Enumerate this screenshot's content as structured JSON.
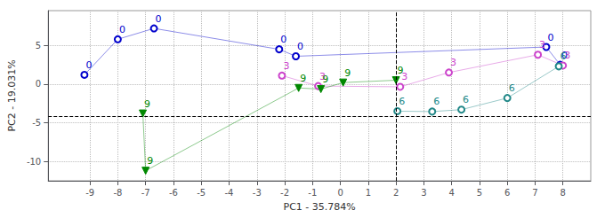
{
  "chart_data": {
    "type": "line",
    "xlabel": "PC1 - 35.784%",
    "ylabel": "PC2 - 19.031%",
    "xlim": [
      -10.5,
      9.0
    ],
    "ylim": [
      -12.5,
      9.5
    ],
    "xticks": [
      -9,
      -8,
      -7,
      -6,
      -5,
      -4,
      -3,
      -2,
      -1,
      0,
      1,
      2,
      3,
      4,
      5,
      6,
      7,
      8
    ],
    "yticks": [
      -10,
      -5,
      0,
      5
    ],
    "grid": true,
    "hline": -4.2,
    "vline": 2.0,
    "series": [
      {
        "name": "0",
        "color": "#0000cc",
        "marker": "circle",
        "x": [
          -9.2,
          -8.0,
          -6.7,
          -2.2,
          -1.6,
          7.4,
          7.9
        ],
        "values": [
          1.2,
          5.8,
          7.2,
          4.5,
          3.6,
          4.8,
          2.5
        ]
      },
      {
        "name": "3",
        "color": "#cc44cc",
        "marker": "circle",
        "x": [
          -2.1,
          -0.8,
          2.15,
          3.9,
          7.1,
          8.0
        ],
        "values": [
          1.1,
          -0.25,
          -0.35,
          1.5,
          3.8,
          2.4
        ]
      },
      {
        "name": "6",
        "color": "#228888",
        "marker": "circle",
        "x": [
          2.05,
          3.3,
          4.35,
          6.0,
          7.85
        ],
        "values": [
          -3.5,
          -3.55,
          -3.3,
          -1.8,
          2.3
        ]
      },
      {
        "name": "9",
        "color": "#008800",
        "marker": "triangle_down",
        "x": [
          -7.1,
          -7.0,
          -1.5,
          -0.7,
          0.1,
          2.0
        ],
        "values": [
          -3.8,
          -11.2,
          -0.5,
          -0.65,
          0.2,
          0.5
        ]
      }
    ]
  }
}
